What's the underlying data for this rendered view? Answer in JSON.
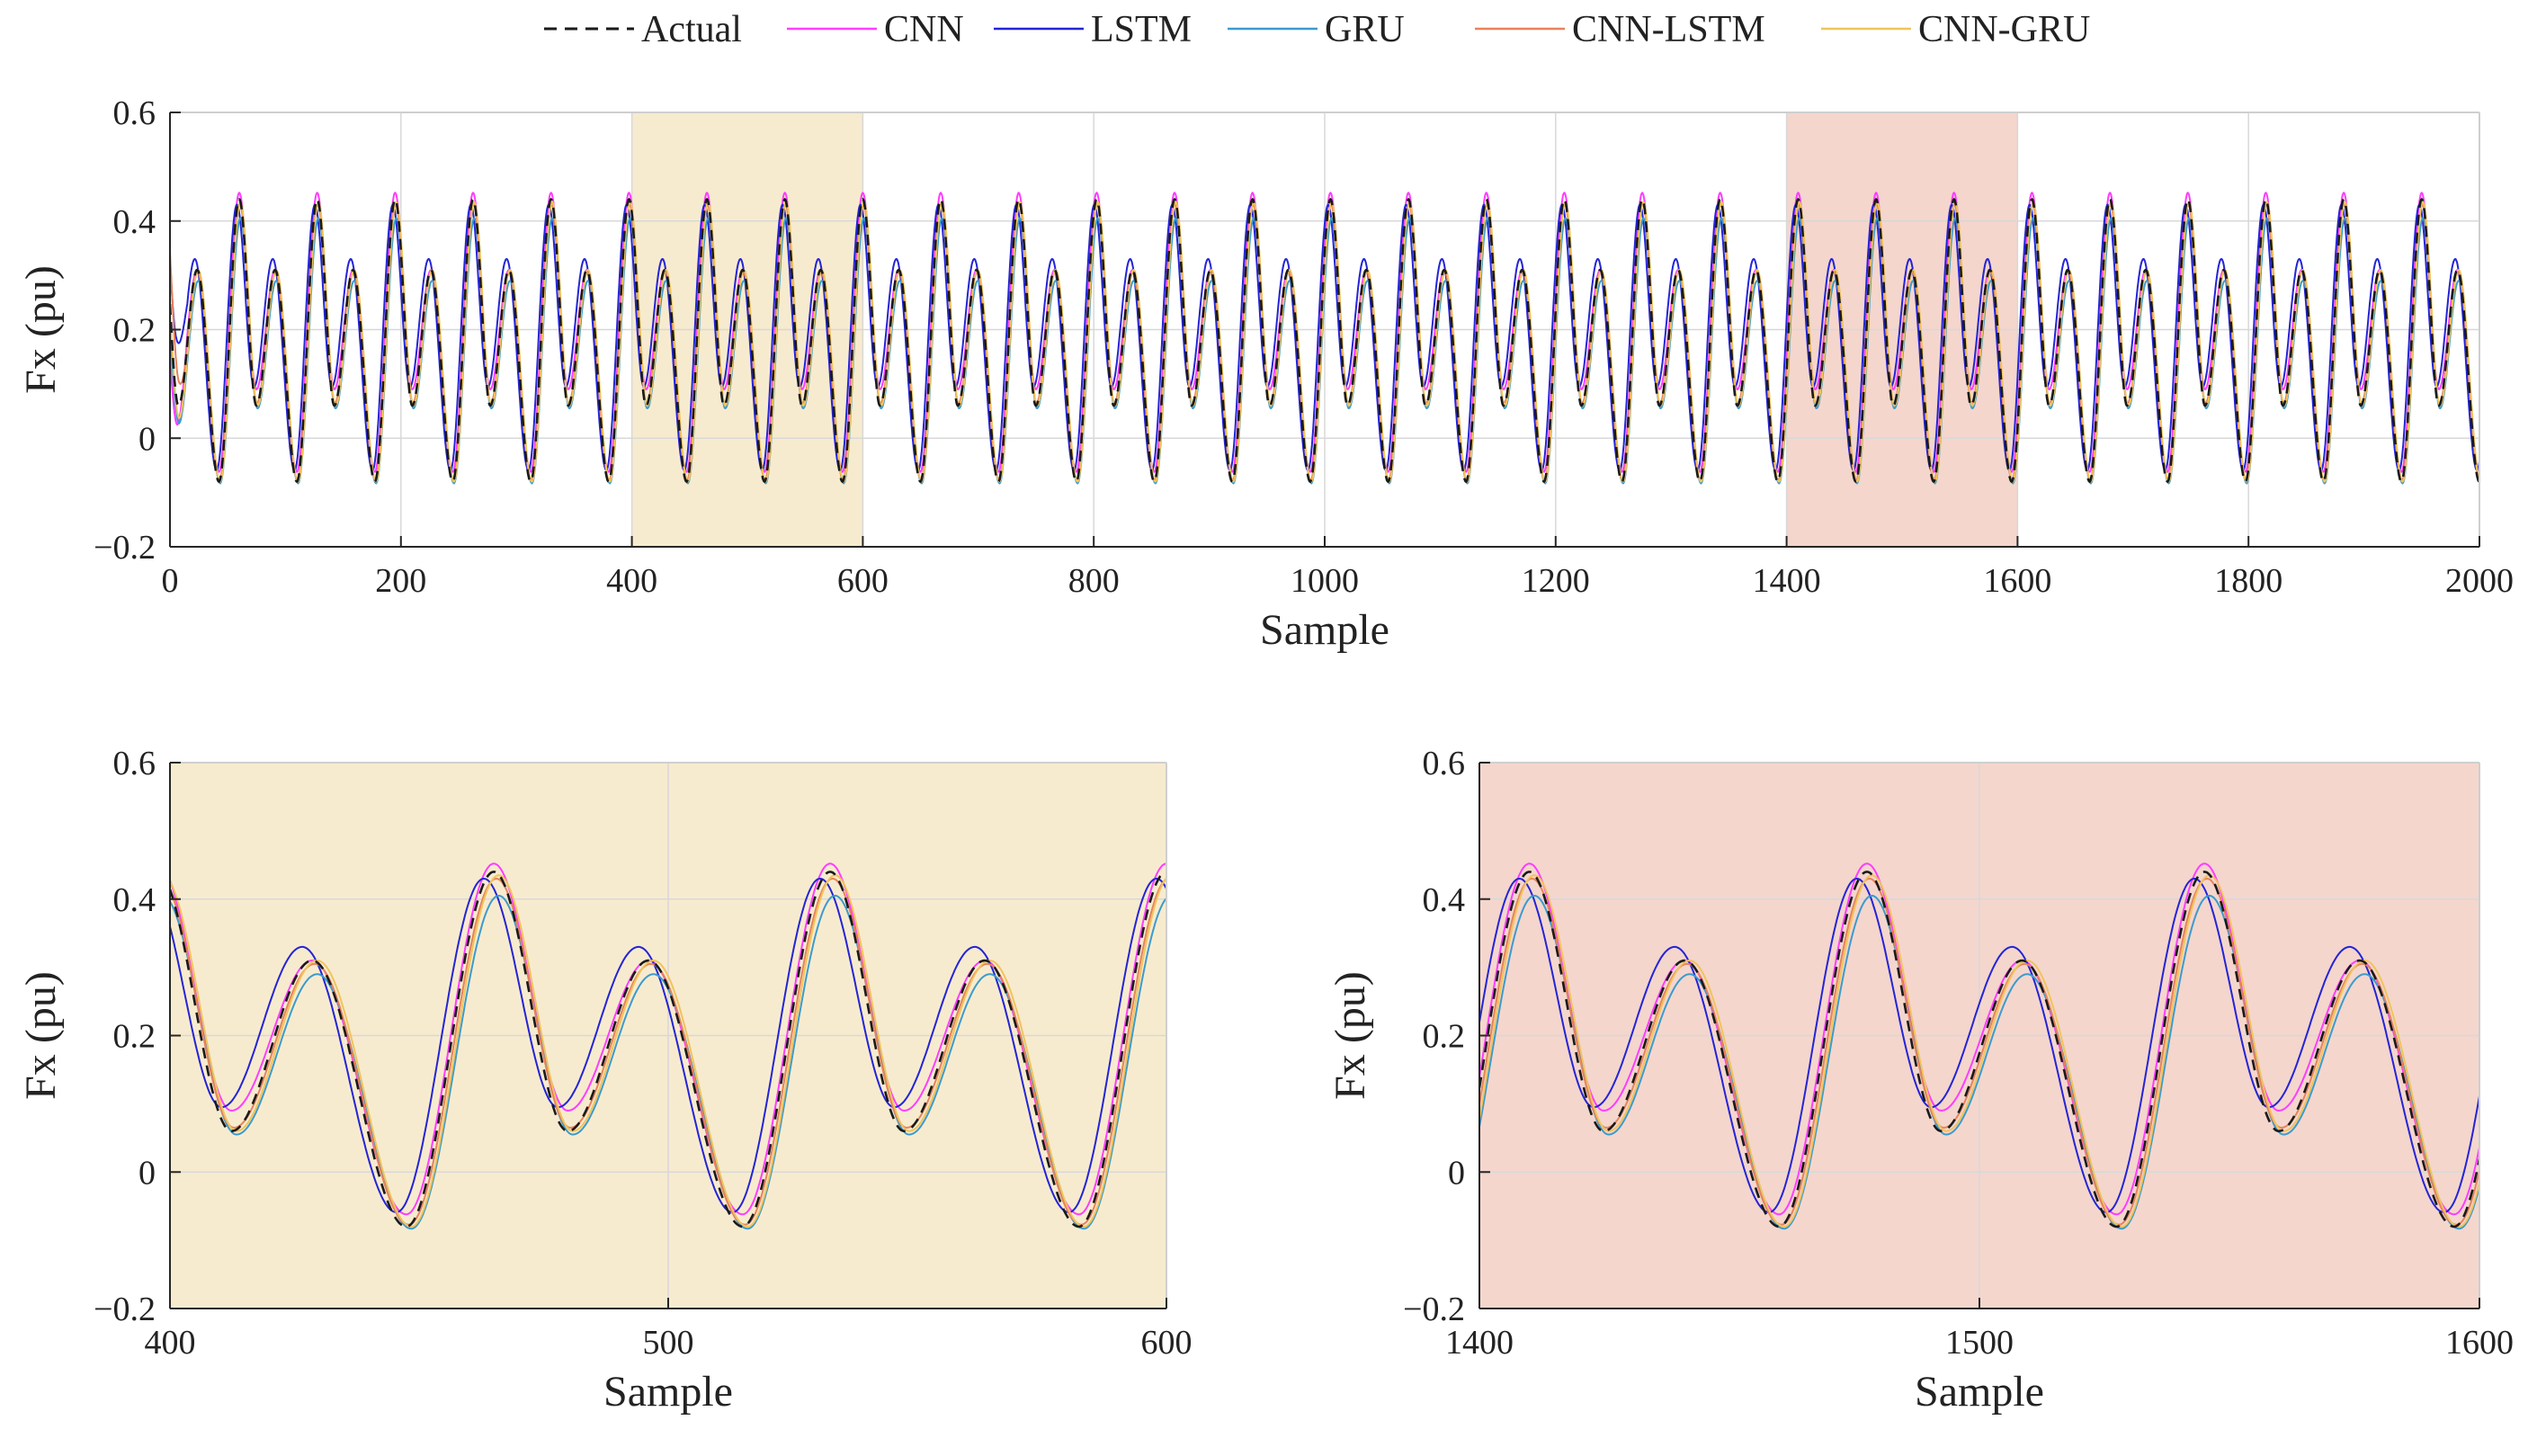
{
  "chart_data": [
    {
      "type": "line",
      "panel": "overview",
      "xlabel": "Sample",
      "ylabel": "Fx (pu)",
      "xlim": [
        0,
        2000
      ],
      "ylim": [
        -0.2,
        0.6
      ],
      "xticks": [
        0,
        200,
        400,
        600,
        800,
        1000,
        1200,
        1400,
        1600,
        1800,
        2000
      ],
      "yticks": [
        -0.2,
        0,
        0.2,
        0.4,
        0.6
      ],
      "highlight_regions": [
        {
          "x": [
            400,
            600
          ],
          "color": "#f7ebcf"
        },
        {
          "x": [
            1400,
            1600
          ],
          "color": "#f4d6cd"
        }
      ],
      "signal": {
        "period_samples": 67.5,
        "phase_ref_sample": 465,
        "peak_major": 0.44,
        "peak_minor": 0.31,
        "trough_shallow": 0.06,
        "trough_deep": -0.08
      }
    },
    {
      "type": "line",
      "panel": "zoom-1",
      "xlabel": "Sample",
      "ylabel": "Fx (pu)",
      "xlim": [
        400,
        600
      ],
      "ylim": [
        -0.2,
        0.6
      ],
      "xticks": [
        400,
        500,
        600
      ],
      "yticks": [
        -0.2,
        0,
        0.2,
        0.4,
        0.6
      ],
      "background": "#f7ebcf"
    },
    {
      "type": "line",
      "panel": "zoom-2",
      "xlabel": "Sample",
      "ylabel": "Fx (pu)",
      "xlim": [
        1400,
        1600
      ],
      "ylim": [
        -0.2,
        0.6
      ],
      "xticks": [
        1400,
        1500,
        1600
      ],
      "yticks": [
        -0.2,
        0,
        0.2,
        0.4,
        0.6
      ],
      "background": "#f4d6cd"
    }
  ],
  "legend": {
    "placement": "top",
    "series": [
      {
        "name": "Actual",
        "color": "#1a1a1a",
        "dashed": true,
        "pk": 0.0,
        "mn": 0.0,
        "tr": 0.0,
        "ph": 0.0
      },
      {
        "name": "CNN",
        "color": "#ff3dff",
        "dashed": false,
        "pk": 0.012,
        "mn": 0.0,
        "tr": 0.03,
        "ph": 0.0
      },
      {
        "name": "LSTM",
        "color": "#2424d6",
        "dashed": false,
        "pk": -0.01,
        "mn": 0.02,
        "tr": 0.035,
        "ph": -2.0
      },
      {
        "name": "GRU",
        "color": "#3c9bcc",
        "dashed": false,
        "pk": -0.035,
        "mn": -0.02,
        "tr": -0.005,
        "ph": 1.0
      },
      {
        "name": "CNN-LSTM",
        "color": "#e8825c",
        "dashed": false,
        "pk": -0.01,
        "mn": -0.005,
        "tr": 0.005,
        "ph": 0.5
      },
      {
        "name": "CNN-GRU",
        "color": "#f0c45c",
        "dashed": false,
        "pk": -0.005,
        "mn": 0.0,
        "tr": 0.0,
        "ph": 1.0
      }
    ]
  }
}
